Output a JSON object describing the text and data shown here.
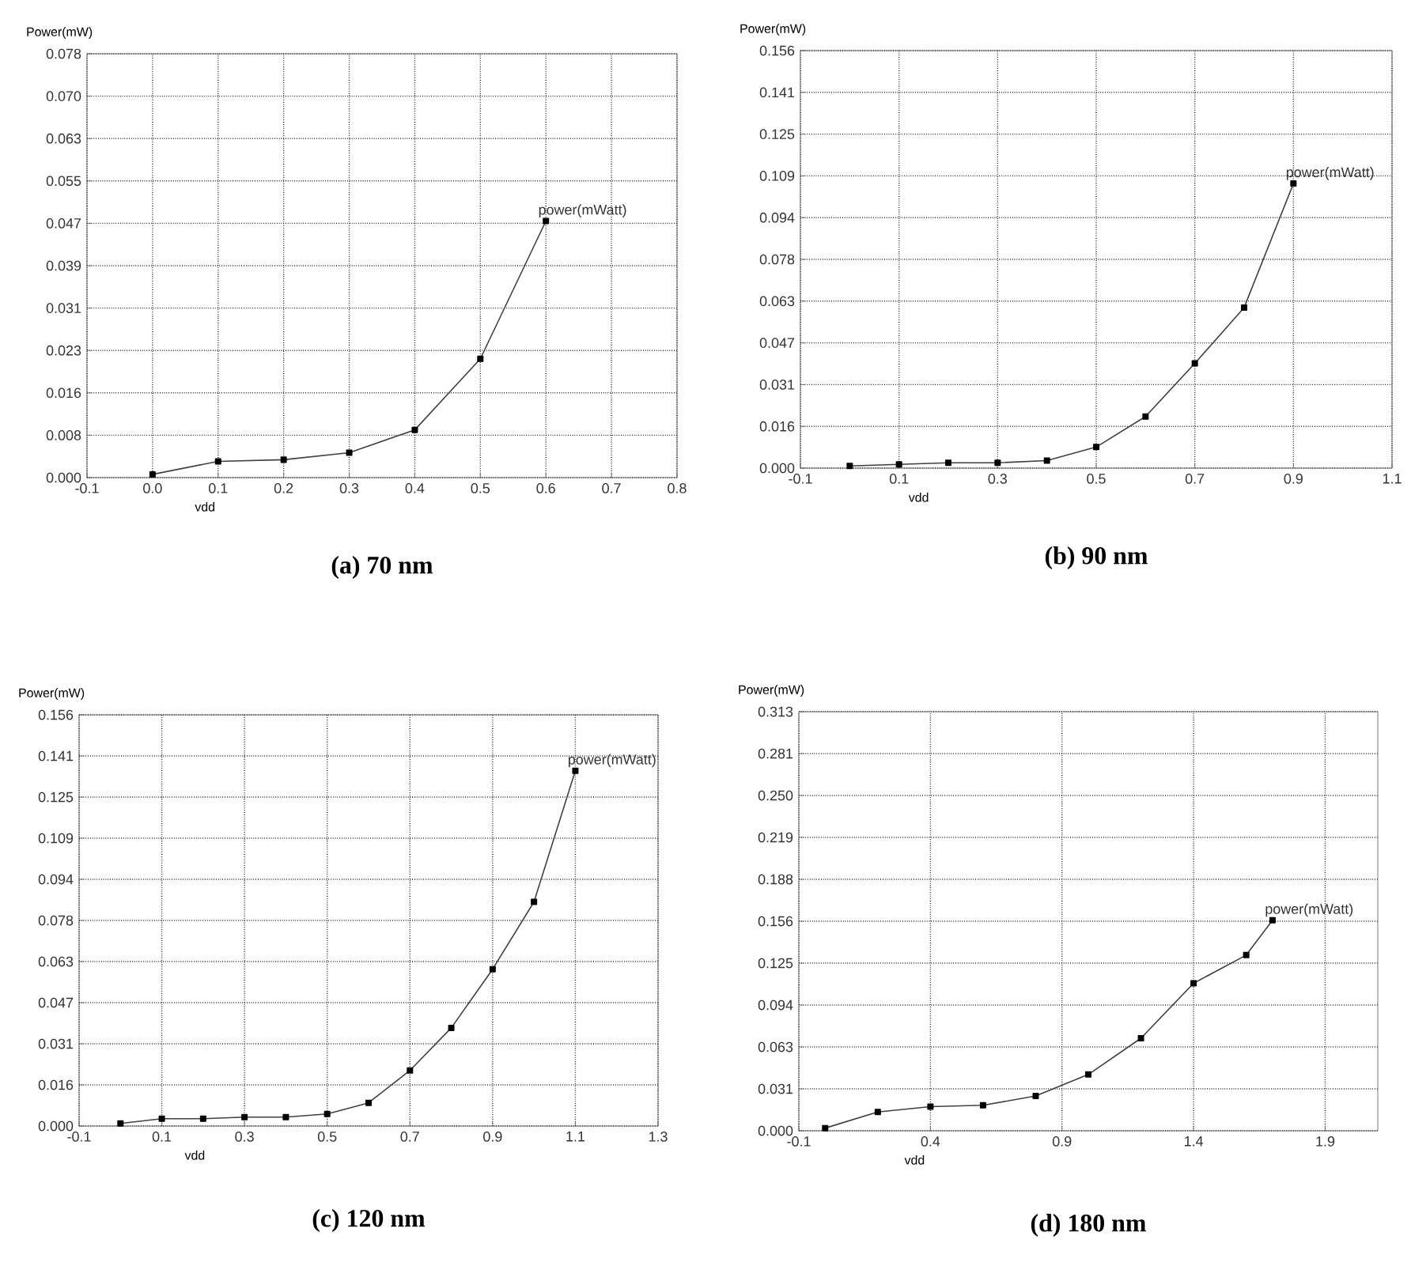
{
  "chart_data": [
    {
      "type": "line",
      "title": "(a) 70 nm",
      "xlabel": "vdd",
      "ylabel": "Power(mW)",
      "grid": true,
      "marker": "square",
      "x": [
        0.0,
        0.1,
        0.2,
        0.3,
        0.4,
        0.5,
        0.6
      ],
      "series": [
        {
          "name": "power(mWatt)",
          "color": "#404040",
          "values": [
            0.0006,
            0.003,
            0.0033,
            0.0046,
            0.0088,
            0.0219,
            0.0473
          ]
        }
      ],
      "xlim": [
        -0.1,
        0.8
      ],
      "ylim": [
        0,
        0.078125
      ],
      "xticks": [
        -0.1,
        {
          "value": 0,
          "label": "0.0"
        },
        0.1,
        0.2,
        0.3,
        0.4,
        0.5,
        0.6,
        0.7,
        0.8
      ],
      "yticks": [
        {
          "value": 0,
          "label": "0.000"
        },
        {
          "value": 0.0078125,
          "label": "0.008"
        },
        {
          "value": 0.015625,
          "label": "0.016"
        },
        {
          "value": 0.0234375,
          "label": "0.023"
        },
        {
          "value": 0.03125,
          "label": "0.031"
        },
        {
          "value": 0.0390625,
          "label": "0.039"
        },
        {
          "value": 0.046875,
          "label": "0.047"
        },
        {
          "value": 0.0546875,
          "label": "0.055"
        },
        {
          "value": 0.0625,
          "label": "0.063"
        },
        {
          "value": 0.0703125,
          "label": "0.070"
        },
        {
          "value": 0.078125,
          "label": "0.078"
        }
      ]
    },
    {
      "type": "line",
      "title": "(b) 90 nm",
      "xlabel": "vdd",
      "ylabel": "Power(mW)",
      "grid": true,
      "marker": "square",
      "x": [
        0.0,
        0.1,
        0.2,
        0.3,
        0.4,
        0.5,
        0.6,
        0.7,
        0.8,
        0.9
      ],
      "series": [
        {
          "name": "power(mWatt)",
          "color": "#404040",
          "values": [
            0.0008,
            0.0014,
            0.002,
            0.002,
            0.0028,
            0.0079,
            0.0193,
            0.0392,
            0.0601,
            0.1065
          ]
        }
      ],
      "xlim": [
        -0.1,
        1.1
      ],
      "ylim": [
        0,
        0.15625
      ],
      "xticks": [
        -0.1,
        0.1,
        0.3,
        0.5,
        0.7,
        0.9,
        1.1
      ],
      "yticks": [
        {
          "value": 0,
          "label": "0.000"
        },
        {
          "value": 0.015625,
          "label": "0.016"
        },
        {
          "value": 0.03125,
          "label": "0.031"
        },
        {
          "value": 0.046875,
          "label": "0.047"
        },
        {
          "value": 0.0625,
          "label": "0.063"
        },
        {
          "value": 0.078125,
          "label": "0.078"
        },
        {
          "value": 0.09375,
          "label": "0.094"
        },
        {
          "value": 0.109375,
          "label": "0.109"
        },
        {
          "value": 0.125,
          "label": "0.125"
        },
        {
          "value": 0.140625,
          "label": "0.141"
        },
        {
          "value": 0.15625,
          "label": "0.156"
        }
      ]
    },
    {
      "type": "line",
      "title": "(c) 120 nm",
      "xlabel": "vdd",
      "ylabel": "Power(mW)",
      "grid": true,
      "marker": "square",
      "x": [
        0.0,
        0.1,
        0.2,
        0.3,
        0.4,
        0.5,
        0.6,
        0.7,
        0.8,
        0.9,
        1.0,
        1.1
      ],
      "series": [
        {
          "name": "power(mWatt)",
          "color": "#404040",
          "values": [
            0.001,
            0.0028,
            0.0028,
            0.0034,
            0.0034,
            0.0046,
            0.0088,
            0.0211,
            0.0373,
            0.0596,
            0.0852,
            0.135
          ]
        }
      ],
      "xlim": [
        -0.1,
        1.3
      ],
      "ylim": [
        0,
        0.15625
      ],
      "xticks": [
        -0.1,
        0.1,
        0.3,
        0.5,
        0.7,
        0.9,
        1.1,
        1.3
      ],
      "yticks": [
        {
          "value": 0,
          "label": "0.000"
        },
        {
          "value": 0.015625,
          "label": "0.016"
        },
        {
          "value": 0.03125,
          "label": "0.031"
        },
        {
          "value": 0.046875,
          "label": "0.047"
        },
        {
          "value": 0.0625,
          "label": "0.063"
        },
        {
          "value": 0.078125,
          "label": "0.078"
        },
        {
          "value": 0.09375,
          "label": "0.094"
        },
        {
          "value": 0.109375,
          "label": "0.109"
        },
        {
          "value": 0.125,
          "label": "0.125"
        },
        {
          "value": 0.140625,
          "label": "0.141"
        },
        {
          "value": 0.15625,
          "label": "0.156"
        }
      ]
    },
    {
      "type": "line",
      "title": "(d) 180 nm",
      "xlabel": "vdd",
      "ylabel": "Power(mW)",
      "grid": true,
      "marker": "square",
      "x": [
        0.0,
        0.2,
        0.4,
        0.6,
        0.8,
        1.0,
        1.2,
        1.4,
        1.6,
        1.7
      ],
      "series": [
        {
          "name": "power(mWatt)",
          "color": "#404040",
          "values": [
            0.002,
            0.014,
            0.018,
            0.019,
            0.026,
            0.042,
            0.069,
            0.11,
            0.131,
            0.157
          ]
        }
      ],
      "xlim": [
        -0.1,
        2.1
      ],
      "ylim": [
        0,
        0.3125
      ],
      "xticks": [
        -0.1,
        0.4,
        0.9,
        1.4,
        1.9
      ],
      "yticks": [
        {
          "value": 0,
          "label": "0.000"
        },
        {
          "value": 0.03125,
          "label": "0.031"
        },
        {
          "value": 0.0625,
          "label": "0.063"
        },
        {
          "value": 0.09375,
          "label": "0.094"
        },
        {
          "value": 0.125,
          "label": "0.125"
        },
        {
          "value": 0.15625,
          "label": "0.156"
        },
        {
          "value": 0.1875,
          "label": "0.188"
        },
        {
          "value": 0.21875,
          "label": "0.219"
        },
        {
          "value": 0.25,
          "label": "0.250"
        },
        {
          "value": 0.28125,
          "label": "0.281"
        },
        {
          "value": 0.3125,
          "label": "0.313"
        }
      ]
    }
  ]
}
